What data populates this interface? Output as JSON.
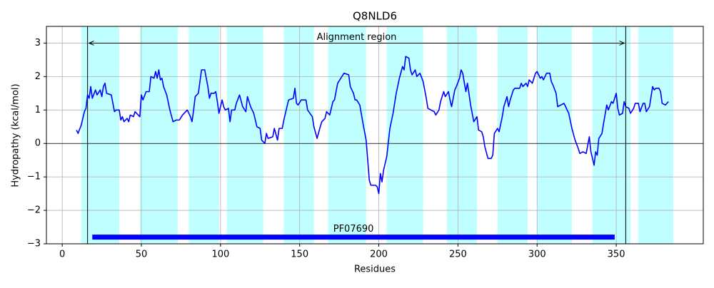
{
  "chart_data": {
    "type": "line",
    "title": "Q8NLD6",
    "x_label": "Residues",
    "y_label": "Hydropathy (kcal/mol)",
    "x": [
      9,
      10,
      12,
      14,
      15,
      16,
      17,
      18,
      19,
      21,
      22,
      24,
      25,
      26,
      27,
      28,
      31,
      32,
      33,
      34,
      36,
      37,
      38,
      39,
      41,
      42,
      43,
      45,
      46,
      49,
      50,
      51,
      53,
      55,
      56,
      58,
      59,
      60,
      61,
      62,
      63,
      64,
      66,
      68,
      70,
      72,
      74,
      76,
      78,
      79,
      81,
      82,
      83,
      84,
      86,
      88,
      90,
      92,
      93,
      94,
      96,
      97,
      98,
      99,
      101,
      102,
      103,
      105,
      106,
      107,
      109,
      110,
      112,
      114,
      116,
      117,
      119,
      121,
      123,
      125,
      126,
      128,
      129,
      130,
      133,
      134,
      136,
      137,
      139,
      140,
      142,
      143,
      146,
      147,
      148,
      149,
      151,
      154,
      155,
      158,
      159,
      161,
      163,
      164,
      166,
      167,
      169,
      171,
      172,
      174,
      176,
      178,
      181,
      182,
      184,
      185,
      186,
      188,
      190,
      192,
      193,
      194,
      195,
      198,
      199,
      200,
      201,
      202,
      203,
      205,
      207,
      209,
      211,
      213,
      215,
      216,
      217,
      219,
      220,
      221,
      223,
      224,
      226,
      228,
      230,
      231,
      233,
      235,
      236,
      238,
      239,
      241,
      242,
      244,
      245,
      246,
      248,
      249,
      251,
      252,
      253,
      255,
      256,
      258,
      259,
      260,
      262,
      263,
      265,
      266,
      267,
      269,
      271,
      272,
      273,
      275,
      276,
      278,
      279,
      281,
      282,
      283,
      285,
      286,
      289,
      290,
      291,
      293,
      294,
      295,
      297,
      299,
      300,
      302,
      303,
      304,
      306,
      308,
      309,
      310,
      312,
      313,
      315,
      317,
      318,
      320,
      322,
      324,
      326,
      327,
      329,
      331,
      333,
      334,
      336,
      337,
      338,
      339,
      341,
      342,
      344,
      345,
      347,
      348,
      350,
      351,
      352,
      354,
      355,
      356,
      358,
      359,
      361,
      362,
      364,
      365,
      367,
      368,
      369,
      371,
      373,
      374,
      375,
      377,
      378,
      379,
      381,
      383
    ],
    "series": [
      {
        "color": "#0000ff",
        "values": [
          0.4,
          0.3,
          0.55,
          0.95,
          1.05,
          1.45,
          1.35,
          1.7,
          1.35,
          1.6,
          1.45,
          1.6,
          1.4,
          1.7,
          1.8,
          1.5,
          1.45,
          1.2,
          0.95,
          1.0,
          1.0,
          0.7,
          0.8,
          0.65,
          0.75,
          0.65,
          0.85,
          0.8,
          0.95,
          0.8,
          1.45,
          1.3,
          1.55,
          1.55,
          2.0,
          1.95,
          2.15,
          1.95,
          2.2,
          1.9,
          1.95,
          1.7,
          1.45,
          1.0,
          0.65,
          0.7,
          0.7,
          0.85,
          0.95,
          1.0,
          0.8,
          0.65,
          1.0,
          1.4,
          1.5,
          2.2,
          2.2,
          1.7,
          1.35,
          1.5,
          1.5,
          1.55,
          1.25,
          0.9,
          1.3,
          1.1,
          1.0,
          1.05,
          0.65,
          1.0,
          1.0,
          1.2,
          1.45,
          1.1,
          0.95,
          1.4,
          1.1,
          0.9,
          0.5,
          0.45,
          0.1,
          0.0,
          0.3,
          0.15,
          0.2,
          0.45,
          0.1,
          0.45,
          0.45,
          0.7,
          1.1,
          1.3,
          1.35,
          1.65,
          1.2,
          1.15,
          1.3,
          1.3,
          1.0,
          0.8,
          0.5,
          0.15,
          0.5,
          0.65,
          0.75,
          0.95,
          0.85,
          1.25,
          1.3,
          1.8,
          1.95,
          2.1,
          2.05,
          1.7,
          1.5,
          1.3,
          1.3,
          1.15,
          0.6,
          0.1,
          -0.5,
          -1.1,
          -1.25,
          -1.25,
          -1.3,
          -1.5,
          -0.9,
          -1.15,
          -0.8,
          -0.4,
          0.45,
          0.9,
          1.5,
          1.95,
          2.3,
          2.2,
          2.6,
          2.55,
          2.2,
          2.05,
          2.2,
          2.0,
          2.1,
          1.85,
          1.35,
          1.05,
          1.0,
          0.95,
          0.85,
          1.0,
          1.25,
          1.55,
          1.4,
          1.55,
          1.3,
          1.1,
          1.6,
          1.7,
          1.95,
          2.2,
          2.1,
          1.55,
          1.8,
          1.15,
          0.9,
          0.65,
          0.8,
          0.4,
          0.35,
          0.2,
          -0.1,
          -0.45,
          -0.45,
          -0.35,
          0.3,
          0.45,
          0.35,
          0.8,
          1.1,
          1.4,
          1.1,
          1.3,
          1.6,
          1.65,
          1.65,
          1.8,
          1.7,
          1.8,
          1.7,
          1.9,
          1.8,
          2.1,
          2.15,
          1.95,
          2.0,
          1.9,
          2.1,
          2.1,
          1.85,
          1.75,
          1.5,
          1.1,
          1.15,
          1.2,
          1.1,
          0.9,
          0.45,
          0.1,
          -0.15,
          -0.3,
          -0.25,
          -0.3,
          0.2,
          -0.25,
          -0.65,
          -0.25,
          -0.35,
          0.15,
          0.3,
          0.6,
          1.15,
          1.0,
          1.25,
          1.2,
          1.5,
          1.05,
          0.85,
          0.9,
          1.25,
          1.1,
          1.05,
          0.9,
          1.05,
          1.2,
          1.2,
          0.95,
          1.2,
          1.2,
          0.95,
          1.1,
          1.7,
          1.6,
          1.65,
          1.65,
          1.55,
          1.2,
          1.15,
          1.25
        ]
      }
    ],
    "regions": [
      [
        12,
        36
      ],
      [
        49,
        73
      ],
      [
        80,
        99
      ],
      [
        104,
        127
      ],
      [
        140,
        159
      ],
      [
        168,
        192
      ],
      [
        205,
        228
      ],
      [
        243,
        262
      ],
      [
        275,
        294
      ],
      [
        300,
        322
      ],
      [
        335,
        359
      ],
      [
        364,
        386
      ]
    ],
    "region_color": "#c0ffff",
    "alignment": {
      "label": "Alignment region",
      "start": 16,
      "end": 356,
      "y": 3
    },
    "domain": {
      "label": "PF07690",
      "start": 19,
      "end": 349,
      "y": -2.8,
      "color": "#0000ff"
    },
    "xlim": [
      -10,
      405
    ],
    "ylim": [
      -3,
      3.5
    ],
    "xticks": [
      0,
      50,
      100,
      150,
      200,
      250,
      300,
      350
    ],
    "yticks": [
      {
        "value": -3,
        "label": "−3"
      },
      {
        "value": -2,
        "label": "−2"
      },
      {
        "value": -1,
        "label": "−1"
      },
      0,
      1,
      2,
      3
    ],
    "grid": true
  }
}
